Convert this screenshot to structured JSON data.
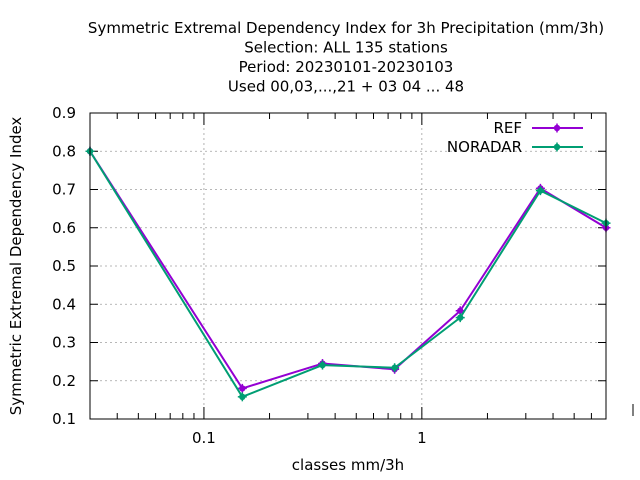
{
  "chart_data": {
    "type": "line",
    "title_lines": [
      "Symmetric Extremal Dependency Index  for 3h Precipitation (mm/3h)",
      "Selection: ALL    135 stations",
      "Period: 20230101-20230103",
      "Used  00,03,...,21  + 03 04 ... 48"
    ],
    "xlabel": "classes mm/3h",
    "ylabel": "Symmetric Extremal Dependency Index",
    "x_scale": "log",
    "xlim": [
      0.03,
      7.0
    ],
    "ylim": [
      0.1,
      0.9
    ],
    "x_tick_labels": [
      {
        "value": 0.1,
        "label": "0.1"
      },
      {
        "value": 1,
        "label": "1"
      }
    ],
    "y_ticks": [
      0.1,
      0.2,
      0.3,
      0.4,
      0.5,
      0.6,
      0.7,
      0.8,
      0.9
    ],
    "y_tick_labels": [
      "0.1",
      "0.2",
      "0.3",
      "0.4",
      "0.5",
      "0.6",
      "0.7",
      "0.8",
      "0.9"
    ],
    "grid": true,
    "legend_position": "top-right",
    "series": [
      {
        "name": "REF",
        "color": "#9400d3",
        "x": [
          0.03,
          0.15,
          0.35,
          0.75,
          1.5,
          3.5,
          7.0
        ],
        "y": [
          0.8,
          0.18,
          0.245,
          0.23,
          0.383,
          0.703,
          0.6
        ]
      },
      {
        "name": "NORADAR",
        "color": "#009e73",
        "x": [
          0.03,
          0.15,
          0.35,
          0.75,
          1.5,
          3.5,
          7.0
        ],
        "y": [
          0.8,
          0.158,
          0.241,
          0.234,
          0.365,
          0.697,
          0.612
        ]
      }
    ]
  }
}
